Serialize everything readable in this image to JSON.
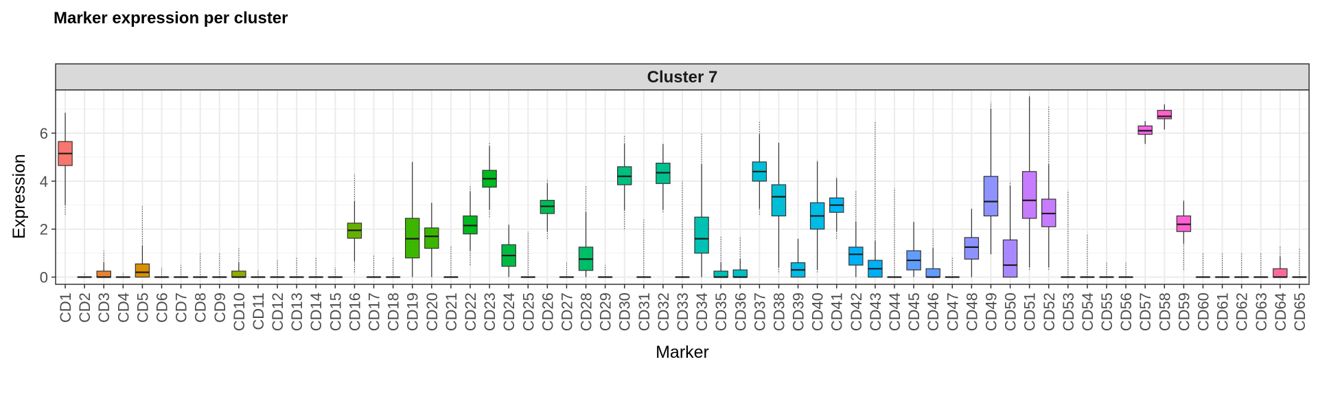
{
  "chart_data": {
    "type": "box",
    "title": "Marker expression per cluster",
    "facet_label": "Cluster 7",
    "xlabel": "Marker",
    "ylabel": "Expression",
    "ylim": [
      -0.3,
      7.8
    ],
    "yticks": [
      0,
      2,
      4,
      6
    ],
    "grid": true,
    "legend": "none",
    "categories": [
      "CD1",
      "CD2",
      "CD3",
      "CD4",
      "CD5",
      "CD6",
      "CD7",
      "CD8",
      "CD9",
      "CD10",
      "CD11",
      "CD12",
      "CD13",
      "CD14",
      "CD15",
      "CD16",
      "CD17",
      "CD18",
      "CD19",
      "CD20",
      "CD21",
      "CD22",
      "CD23",
      "CD24",
      "CD25",
      "CD26",
      "CD27",
      "CD28",
      "CD29",
      "CD30",
      "CD31",
      "CD32",
      "CD33",
      "CD34",
      "CD35",
      "CD36",
      "CD37",
      "CD38",
      "CD39",
      "CD40",
      "CD41",
      "CD42",
      "CD43",
      "CD44",
      "CD45",
      "CD46",
      "CD47",
      "CD48",
      "CD49",
      "CD50",
      "CD51",
      "CD52",
      "CD53",
      "CD54",
      "CD55",
      "CD56",
      "CD57",
      "CD58",
      "CD59",
      "CD60",
      "CD61",
      "CD62",
      "CD63",
      "CD64",
      "CD65"
    ],
    "colors": [
      "#F8766D",
      "#F27D52",
      "#EA8331",
      "#E18A00",
      "#D89000",
      "#CD9600",
      "#C19C00",
      "#B4A000",
      "#A3A500",
      "#93AA00",
      "#7FAE00",
      "#64B200",
      "#3DB600",
      "#00B81F",
      "#00BA42",
      "#00BC56",
      "#00BD68",
      "#00BF7D",
      "#00C08E",
      "#00C1A0",
      "#00C1B2",
      "#00C0C4",
      "#00BED5",
      "#00BBE5",
      "#00B6F3",
      "#00B0F6",
      "#00A5FF",
      "#619CFF",
      "#8E92FF",
      "#A987FF",
      "#C77CFF",
      "#D474F6",
      "#E76BF3",
      "#F564E3",
      "#FF61CC",
      "#FD61D1",
      "#FF65B0",
      "#FF6A98",
      "#FC717F",
      "#F8766D"
    ],
    "color_index": [
      0,
      2,
      2,
      3,
      4,
      5,
      6,
      7,
      8,
      9,
      10,
      10,
      10,
      10,
      11,
      11,
      11,
      11,
      12,
      12,
      13,
      13,
      13,
      14,
      14,
      15,
      15,
      16,
      16,
      17,
      17,
      18,
      19,
      20,
      20,
      21,
      22,
      22,
      23,
      23,
      24,
      25,
      25,
      25,
      27,
      27,
      27,
      28,
      28,
      29,
      30,
      30,
      31,
      31,
      31,
      32,
      33,
      34,
      35,
      35,
      35,
      36,
      36,
      37,
      38
    ],
    "stats": {
      "q1": [
        4.65,
        0,
        0,
        0,
        0,
        0,
        0,
        0,
        0,
        0,
        0,
        0,
        0,
        0,
        0,
        1.62,
        0,
        0,
        0.8,
        1.2,
        0,
        1.8,
        3.75,
        0.45,
        0,
        2.65,
        0,
        0.28,
        0,
        3.85,
        0,
        3.9,
        0,
        1.0,
        0,
        0,
        4.0,
        2.55,
        0,
        2.0,
        2.7,
        0.5,
        0,
        0,
        0.3,
        0,
        0,
        0.75,
        2.55,
        0,
        2.45,
        2.1,
        0,
        0,
        0,
        0,
        5.95,
        6.6,
        1.9,
        0,
        0,
        0,
        0,
        0,
        0
      ],
      "median": [
        5.15,
        0,
        0,
        0,
        0.2,
        0,
        0,
        0,
        0,
        0,
        0,
        0,
        0,
        0,
        0,
        1.95,
        0,
        0,
        1.6,
        1.7,
        0,
        2.15,
        4.1,
        0.9,
        0,
        2.95,
        0,
        0.75,
        0,
        4.2,
        0,
        4.35,
        0,
        1.6,
        0,
        0,
        4.4,
        3.35,
        0.3,
        2.55,
        3.0,
        0.95,
        0.35,
        0,
        0.7,
        0,
        0,
        1.25,
        3.15,
        0.5,
        3.2,
        2.65,
        0,
        0,
        0,
        0,
        6.1,
        6.7,
        2.2,
        0,
        0,
        0,
        0,
        0,
        0
      ],
      "q3": [
        5.65,
        0,
        0.25,
        0,
        0.55,
        0,
        0,
        0,
        0,
        0.25,
        0,
        0,
        0,
        0,
        0,
        2.25,
        0,
        0,
        2.45,
        2.05,
        0,
        2.55,
        4.45,
        1.35,
        0,
        3.2,
        0,
        1.25,
        0,
        4.6,
        0,
        4.75,
        0,
        2.5,
        0.25,
        0.3,
        4.8,
        3.85,
        0.6,
        3.1,
        3.3,
        1.25,
        0.7,
        0,
        1.1,
        0.35,
        0,
        1.65,
        4.2,
        1.55,
        4.4,
        3.25,
        0,
        0,
        0,
        0,
        6.3,
        6.95,
        2.55,
        0,
        0,
        0,
        0,
        0.35,
        0
      ],
      "whisker_low": [
        3.0,
        0,
        0,
        0,
        0,
        0,
        0,
        0,
        0,
        0,
        0,
        0,
        0,
        0,
        0,
        0.65,
        0,
        0,
        0,
        0,
        0,
        1.1,
        2.8,
        0,
        0,
        1.9,
        0,
        0,
        0,
        2.8,
        0,
        2.8,
        0,
        0,
        0,
        0,
        2.85,
        0.4,
        0,
        0.3,
        1.9,
        0,
        0,
        0,
        0,
        0,
        0,
        0,
        0.95,
        0,
        0.4,
        0.4,
        0,
        0,
        0,
        0,
        5.55,
        6.15,
        1.4,
        0,
        0,
        0,
        0,
        0,
        0
      ],
      "whisker_high": [
        6.85,
        0,
        0.6,
        0,
        1.3,
        0,
        0,
        0,
        0,
        0.6,
        0,
        0,
        0,
        0,
        0,
        3.15,
        0,
        0,
        4.8,
        3.1,
        0,
        3.55,
        5.45,
        2.15,
        0,
        3.9,
        0,
        2.7,
        0,
        5.55,
        0,
        5.55,
        0,
        4.7,
        0.6,
        0.75,
        5.95,
        5.6,
        1.6,
        4.8,
        4.1,
        2.3,
        1.5,
        0,
        2.3,
        1.2,
        0,
        2.85,
        7.0,
        3.8,
        7.5,
        4.7,
        0,
        0,
        0,
        0,
        6.5,
        7.2,
        3.15,
        0,
        0,
        0,
        0,
        0.85,
        0
      ],
      "outlier_max": [
        6.85,
        0.2,
        1.1,
        0.2,
        3.0,
        0.4,
        0.5,
        1.0,
        1.0,
        1.2,
        0.3,
        0.7,
        0.8,
        0.8,
        0.4,
        4.3,
        0.9,
        0.8,
        4.8,
        3.1,
        1.3,
        3.8,
        5.6,
        2.2,
        1.9,
        4.1,
        0.6,
        3.8,
        0.5,
        5.9,
        2.4,
        5.6,
        4.0,
        6.0,
        1.7,
        1.7,
        6.5,
        5.6,
        1.6,
        4.9,
        4.2,
        3.6,
        6.5,
        3.7,
        2.3,
        2.0,
        0.8,
        2.85,
        7.3,
        4.0,
        7.6,
        7.1,
        3.6,
        1.8,
        0.6,
        0.6,
        6.5,
        7.2,
        3.2,
        1.0,
        1.0,
        1.0,
        1.0,
        1.3,
        1.2
      ],
      "outlier_min": [
        2.6,
        0,
        0,
        0,
        0,
        0,
        0,
        0,
        0,
        0,
        0,
        0,
        0,
        0,
        0,
        0.2,
        0,
        0,
        0,
        0,
        0,
        0.5,
        2.5,
        0,
        0,
        1.6,
        0,
        0,
        0,
        2.0,
        0,
        2.7,
        0,
        0,
        0,
        0,
        2.6,
        0.2,
        0,
        0.2,
        1.6,
        0,
        0,
        0,
        0,
        0,
        0,
        0,
        0.9,
        0,
        0.3,
        0.3,
        0,
        0,
        0,
        0,
        5.55,
        6.15,
        0.3,
        0,
        0,
        0,
        0,
        0,
        0
      ]
    }
  }
}
